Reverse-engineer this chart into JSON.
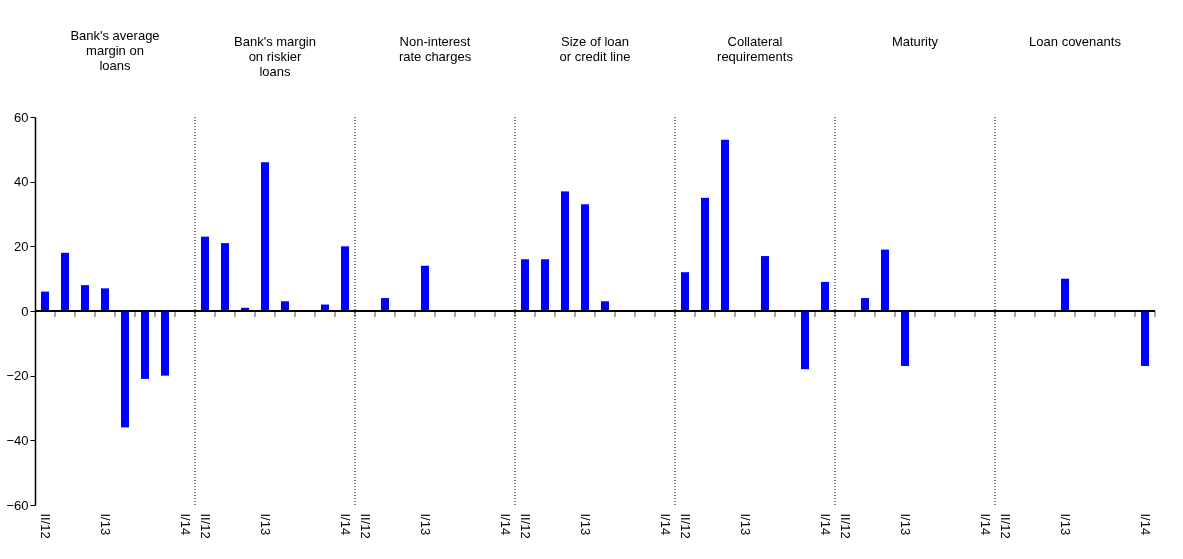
{
  "chart_data": [
    {
      "type": "bar",
      "title": "Bank's average margin on loans",
      "categories": [
        "II/12",
        null,
        null,
        "I/13",
        null,
        null,
        null,
        "I/14"
      ],
      "values": [
        6,
        18,
        8,
        7,
        -36,
        -21,
        -20,
        0
      ],
      "color": "#0000ff",
      "ylim": [
        -60,
        60
      ],
      "yticks": [
        -60,
        -40,
        -20,
        0,
        20,
        40,
        60
      ]
    },
    {
      "type": "bar",
      "title": "Bank's margin on riskier loans",
      "categories": [
        "II/12",
        null,
        null,
        "I/13",
        null,
        null,
        null,
        "I/14"
      ],
      "values": [
        23,
        21,
        1,
        46,
        3,
        0,
        2,
        20
      ],
      "color": "#0000ff",
      "ylim": [
        -60,
        60
      ],
      "tick_labels": "x"
    },
    {
      "type": "bar",
      "title": "Non-interest rate charges",
      "categories": [
        "II/12",
        null,
        null,
        "I/13",
        null,
        null,
        null,
        "I/14"
      ],
      "values": [
        0,
        4,
        0,
        14,
        0,
        0,
        0,
        0
      ],
      "color": "#0000ff",
      "ylim": [
        -60,
        60
      ],
      "tick_labels": "x"
    },
    {
      "type": "bar",
      "title": "Size of loan or credit line",
      "categories": [
        "II/12",
        null,
        null,
        "I/13",
        null,
        null,
        null,
        "I/14"
      ],
      "values": [
        16,
        16,
        37,
        33,
        3,
        0,
        0,
        0
      ],
      "color": "#0000ff",
      "ylim": [
        -60,
        60
      ],
      "tick_labels": "x"
    },
    {
      "type": "bar",
      "title": "Collateral requirements",
      "categories": [
        "II/12",
        null,
        null,
        "I/13",
        null,
        null,
        null,
        "I/14"
      ],
      "values": [
        12,
        35,
        53,
        0,
        17,
        0,
        -18,
        9
      ],
      "color": "#0000ff",
      "ylim": [
        -60,
        60
      ],
      "tick_labels": "x"
    },
    {
      "type": "bar",
      "title": "Maturity",
      "categories": [
        "II/12",
        null,
        null,
        "I/13",
        null,
        null,
        null,
        "I/14"
      ],
      "values": [
        0,
        4,
        19,
        -17,
        0,
        0,
        0,
        0
      ],
      "color": "#0000ff",
      "ylim": [
        -60,
        60
      ],
      "tick_labels": "x"
    },
    {
      "type": "bar",
      "title": "Loan covenants",
      "categories": [
        "II/12",
        null,
        null,
        "I/13",
        null,
        null,
        null,
        "I/14"
      ],
      "values": [
        0,
        0,
        0,
        10,
        0,
        0,
        0,
        -17
      ],
      "color": "#0000ff",
      "ylim": [
        -60,
        60
      ],
      "tick_labels": "x"
    }
  ]
}
